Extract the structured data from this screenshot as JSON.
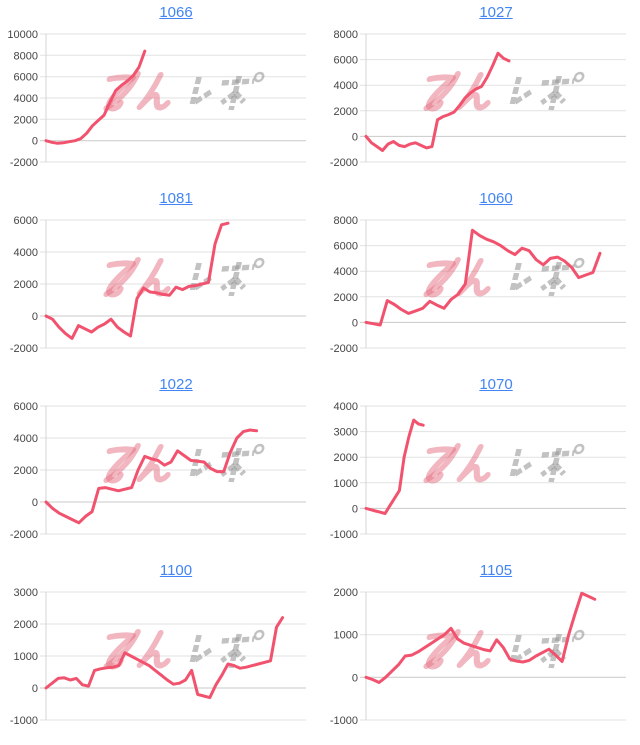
{
  "page": {
    "background": "#ffffff",
    "layout": "2x4 grid of trend line charts"
  },
  "watermark": {
    "label": "みんレポ",
    "text_pink": "みん",
    "text_gray": "レポ",
    "pink_color": "rgba(228,110,128,0.50)",
    "gray_color": "rgba(150,150,150,0.58)"
  },
  "styles": {
    "line_color": "#f1536f",
    "grid_color": "#e2e2e2",
    "baseline_color": "#c9c9c9",
    "axis_color": "#d4d4d4",
    "tick_label_color": "#454545",
    "title_color": "#4285f4"
  },
  "chart_data": [
    {
      "type": "line",
      "title": "1066",
      "xlabel": "",
      "ylabel": "",
      "grid": true,
      "legend": "none",
      "ylim": [
        -2000,
        10000
      ],
      "yticks": [
        -2000,
        0,
        2000,
        4000,
        6000,
        8000,
        10000
      ],
      "x_extent": 0.38,
      "values": [
        0,
        -150,
        -250,
        -200,
        -100,
        0,
        200,
        700,
        1400,
        1900,
        2400,
        3600,
        4700,
        5200,
        5600,
        6100,
        6900,
        8400
      ]
    },
    {
      "type": "line",
      "title": "1027",
      "xlabel": "",
      "ylabel": "",
      "grid": true,
      "legend": "none",
      "ylim": [
        -2000,
        8000
      ],
      "yticks": [
        -2000,
        0,
        2000,
        4000,
        6000,
        8000
      ],
      "x_extent": 0.55,
      "values": [
        0,
        -500,
        -800,
        -1100,
        -600,
        -400,
        -700,
        -800,
        -600,
        -500,
        -700,
        -900,
        -800,
        1300,
        1550,
        1700,
        1900,
        2400,
        3000,
        3400,
        3700,
        3900,
        4600,
        5500,
        6500,
        6100,
        5900
      ]
    },
    {
      "type": "line",
      "title": "1081",
      "xlabel": "",
      "ylabel": "",
      "grid": true,
      "legend": "none",
      "ylim": [
        -2000,
        6000
      ],
      "yticks": [
        -2000,
        0,
        2000,
        4000,
        6000
      ],
      "x_extent": 0.7,
      "values": [
        0,
        -200,
        -700,
        -1100,
        -1400,
        -600,
        -800,
        -1000,
        -700,
        -500,
        -200,
        -700,
        -1000,
        -1250,
        1100,
        1750,
        1500,
        1450,
        1350,
        1300,
        1800,
        1650,
        1850,
        1900,
        2000,
        2100,
        4500,
        5700,
        5800
      ]
    },
    {
      "type": "line",
      "title": "1060",
      "xlabel": "",
      "ylabel": "",
      "grid": true,
      "legend": "none",
      "ylim": [
        -2000,
        8000
      ],
      "yticks": [
        -2000,
        0,
        2000,
        4000,
        6000,
        8000
      ],
      "x_extent": 0.9,
      "values": [
        0,
        -100,
        -200,
        1700,
        1400,
        1000,
        700,
        900,
        1100,
        1650,
        1350,
        1100,
        1800,
        2200,
        3000,
        7200,
        6800,
        6500,
        6300,
        6000,
        5600,
        5300,
        5800,
        5600,
        4900,
        4500,
        5000,
        5100,
        4800,
        4300,
        3500,
        3700,
        3900,
        5400
      ]
    },
    {
      "type": "line",
      "title": "1022",
      "xlabel": "",
      "ylabel": "",
      "grid": true,
      "legend": "none",
      "ylim": [
        -2000,
        6000
      ],
      "yticks": [
        -2000,
        0,
        2000,
        4000,
        6000
      ],
      "x_extent": 0.81,
      "values": [
        0,
        -400,
        -700,
        -900,
        -1100,
        -1300,
        -900,
        -600,
        850,
        900,
        800,
        700,
        800,
        900,
        2000,
        2850,
        2700,
        2600,
        2300,
        2500,
        3200,
        2900,
        2600,
        2550,
        2500,
        2100,
        1900,
        1900,
        3100,
        4000,
        4400,
        4500,
        4450
      ]
    },
    {
      "type": "line",
      "title": "1070",
      "xlabel": "",
      "ylabel": "",
      "grid": true,
      "legend": "none",
      "ylim": [
        -1000,
        4000
      ],
      "yticks": [
        -1000,
        0,
        1000,
        2000,
        3000,
        4000
      ],
      "x_extent": 0.22,
      "values": [
        0,
        -50,
        -100,
        -150,
        -200,
        100,
        400,
        700,
        2000,
        2800,
        3450,
        3300,
        3250
      ]
    },
    {
      "type": "line",
      "title": "1100",
      "xlabel": "",
      "ylabel": "",
      "grid": true,
      "legend": "none",
      "ylim": [
        -1000,
        3000
      ],
      "yticks": [
        -1000,
        0,
        1000,
        2000,
        3000
      ],
      "x_extent": 0.91,
      "values": [
        0,
        150,
        300,
        320,
        250,
        300,
        100,
        60,
        550,
        600,
        630,
        650,
        700,
        1100,
        1000,
        900,
        800,
        700,
        550,
        400,
        250,
        120,
        150,
        250,
        550,
        -200,
        -250,
        -300,
        100,
        400,
        750,
        700,
        620,
        650,
        700,
        750,
        800,
        850,
        1900,
        2200
      ]
    },
    {
      "type": "line",
      "title": "1105",
      "xlabel": "",
      "ylabel": "",
      "grid": true,
      "legend": "none",
      "ylim": [
        -1000,
        2000
      ],
      "yticks": [
        -1000,
        0,
        1000,
        2000
      ],
      "x_extent": 0.88,
      "values": [
        0,
        -50,
        -120,
        0,
        150,
        300,
        500,
        520,
        600,
        700,
        800,
        900,
        1000,
        1150,
        900,
        800,
        750,
        700,
        650,
        620,
        880,
        700,
        430,
        380,
        360,
        400,
        500,
        580,
        660,
        520,
        370,
        1000,
        1500,
        1970,
        1900,
        1830
      ]
    }
  ]
}
